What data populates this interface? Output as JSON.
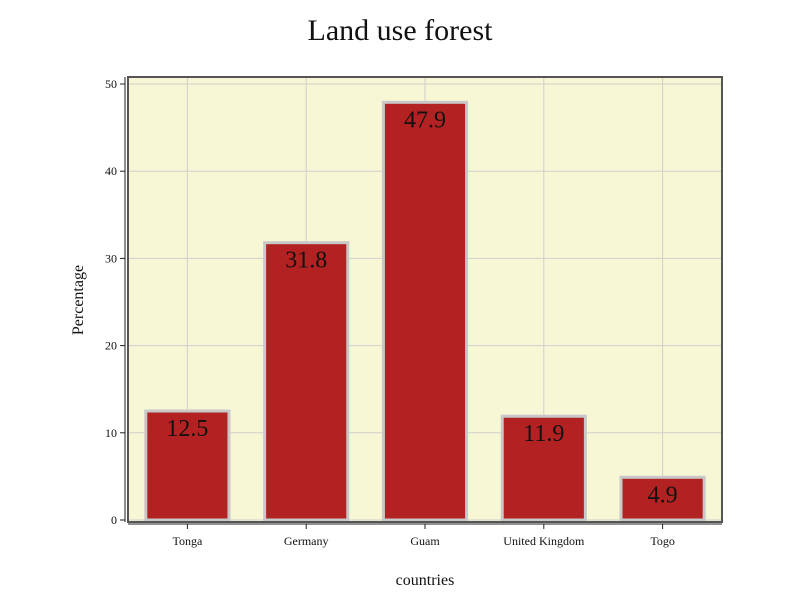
{
  "chart_data": {
    "type": "bar",
    "title": "Land use forest",
    "xlabel": "countries",
    "ylabel": "Percentage",
    "categories": [
      "Tonga",
      "Germany",
      "Guam",
      "United Kingdom",
      "Togo"
    ],
    "values": [
      12.5,
      31.8,
      47.9,
      11.9,
      4.9
    ],
    "value_labels": [
      "12.5",
      "31.8",
      "47.9",
      "11.9",
      "4.9"
    ],
    "ylim": [
      0,
      50
    ],
    "yticks": [
      0,
      10,
      20,
      30,
      40,
      50
    ],
    "ytick_labels": [
      "0",
      "10",
      "20",
      "30",
      "40",
      "50"
    ],
    "grid": true,
    "legend": "none",
    "colors": {
      "bar_fill": "#b22222",
      "bar_edge": "#c8c8c8",
      "plot_background": "#f7f7d5",
      "grid": "#cfcfcf",
      "frame": "#555555"
    }
  }
}
